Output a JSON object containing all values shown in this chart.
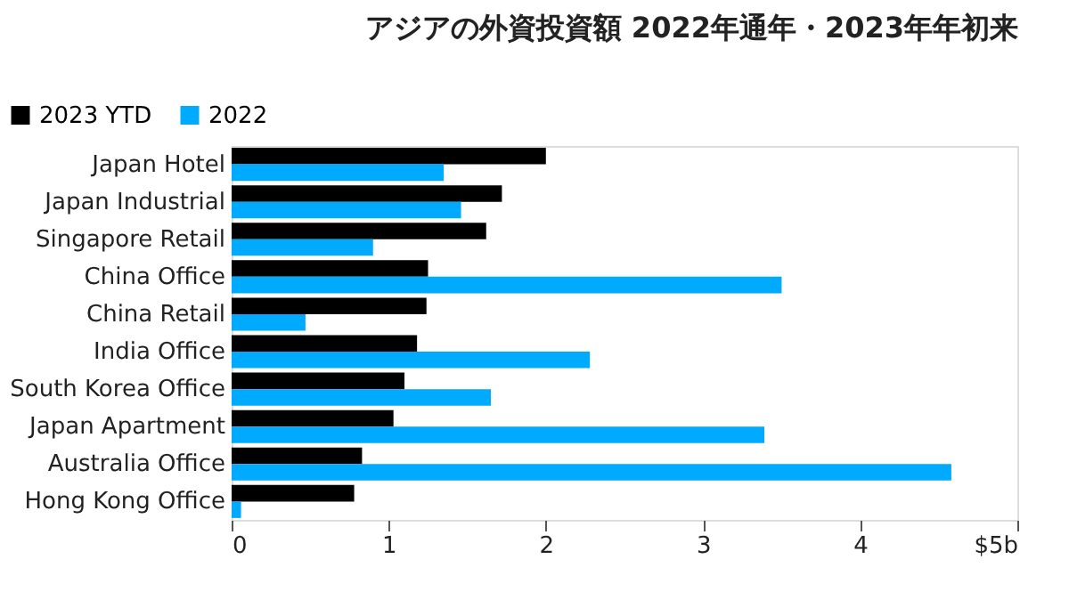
{
  "chart_data": {
    "type": "bar",
    "orientation": "horizontal",
    "title": "アジアの外資投資額  2022年通年・2023年年初来",
    "categories": [
      "Japan Hotel",
      "Japan Industrial",
      "Singapore Retail",
      "China Office",
      "China Retail",
      "India Office",
      "South Korea Office",
      "Japan Apartment",
      "Australia Office",
      "Hong Kong Office"
    ],
    "series": [
      {
        "name": "2023 YTD",
        "color": "#000000",
        "values": [
          2.0,
          1.72,
          1.62,
          1.25,
          1.24,
          1.18,
          1.1,
          1.03,
          0.83,
          0.78
        ]
      },
      {
        "name": "2022",
        "color": "#00aaff",
        "values": [
          1.35,
          1.46,
          0.9,
          3.5,
          0.47,
          2.28,
          1.65,
          3.39,
          4.58,
          0.06
        ]
      }
    ],
    "xlim": [
      0,
      5
    ],
    "xticks": [
      0,
      1,
      2,
      3,
      4,
      {
        "value": 5,
        "label": "$5b"
      }
    ],
    "grid": false,
    "legend": "top left"
  }
}
